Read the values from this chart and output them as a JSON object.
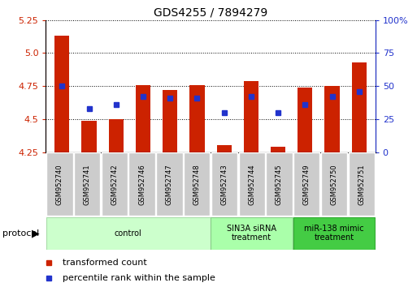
{
  "title": "GDS4255 / 7894279",
  "samples": [
    "GSM952740",
    "GSM952741",
    "GSM952742",
    "GSM952746",
    "GSM952747",
    "GSM952748",
    "GSM952743",
    "GSM952744",
    "GSM952745",
    "GSM952749",
    "GSM952750",
    "GSM952751"
  ],
  "transformed_count": [
    5.13,
    4.49,
    4.5,
    4.76,
    4.72,
    4.76,
    4.3,
    4.79,
    4.29,
    4.74,
    4.75,
    4.93
  ],
  "percentile_rank": [
    50,
    33,
    36,
    42,
    41,
    41,
    30,
    42,
    30,
    36,
    42,
    46
  ],
  "ylim_left": [
    4.25,
    5.25
  ],
  "ylim_right": [
    0,
    100
  ],
  "yticks_left": [
    4.25,
    4.5,
    4.75,
    5.0,
    5.25
  ],
  "yticks_right": [
    0,
    25,
    50,
    75,
    100
  ],
  "bar_color": "#cc2200",
  "dot_color": "#2233cc",
  "protocol_groups": [
    {
      "label": "control",
      "start": 0,
      "end": 5,
      "color": "#ccffcc",
      "border": "#aaddaa"
    },
    {
      "label": "SIN3A siRNA\ntreatment",
      "start": 6,
      "end": 8,
      "color": "#aaffaa",
      "border": "#88cc88"
    },
    {
      "label": "miR-138 mimic\ntreatment",
      "start": 9,
      "end": 11,
      "color": "#44cc44",
      "border": "#33aa33"
    }
  ],
  "sample_box_color": "#cccccc",
  "legend_items": [
    {
      "label": "transformed count",
      "color": "#cc2200"
    },
    {
      "label": "percentile rank within the sample",
      "color": "#2233cc"
    }
  ]
}
